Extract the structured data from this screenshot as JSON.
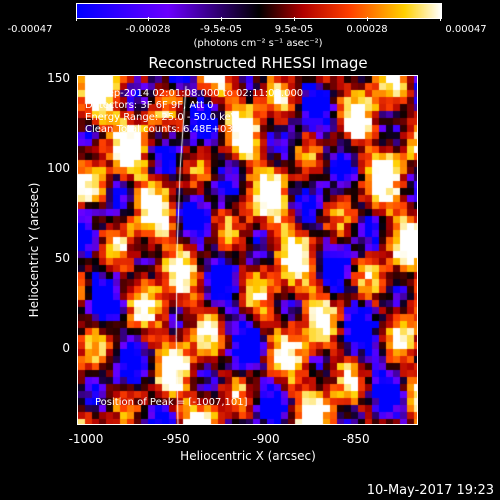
{
  "colorbar": {
    "tick_labels": [
      "-0.00047",
      "-0.00028",
      "-9.5e-05",
      "9.5e-05",
      "0.00028",
      "0.00047"
    ],
    "units": "(photons cm⁻² s⁻¹ asec⁻²)"
  },
  "title": "Reconstructed RHESSI Image",
  "annotations": {
    "time": "18-Sep-2014 02:01:08.000 to 02:11:08.000",
    "detectors": "Detectors: 3F 6F 9F, Att 0",
    "energy": "Energy Range: 25.0 - 50.0 keV",
    "clean": "Clean    Total counts: 6.48E+03",
    "peak": "Position of Peak = [-1007,101]"
  },
  "axes": {
    "xlabel": "Heliocentric X (arcsec)",
    "ylabel": "Heliocentric Y (arcsec)",
    "xticks": [
      "-1000",
      "-950",
      "-900",
      "-850"
    ],
    "yticks": [
      "150",
      "100",
      "50",
      "0"
    ]
  },
  "chart_data": {
    "type": "heatmap",
    "title": "Reconstructed RHESSI Image",
    "xlabel": "Heliocentric X (arcsec)",
    "ylabel": "Heliocentric Y (arcsec)",
    "xlim": [
      -1005,
      -816
    ],
    "ylim": [
      -42,
      150
    ],
    "clim": [
      -0.00047,
      0.00047
    ],
    "colormap": [
      "#0000ff",
      "#6a00ff",
      "#000000",
      "#b00000",
      "#ff4000",
      "#ffd000",
      "#ffffff"
    ],
    "limb_color": "#ffffff",
    "peak_position": [
      -1007,
      101
    ]
  },
  "footer": {
    "timestamp": "10-May-2017 19:23"
  }
}
